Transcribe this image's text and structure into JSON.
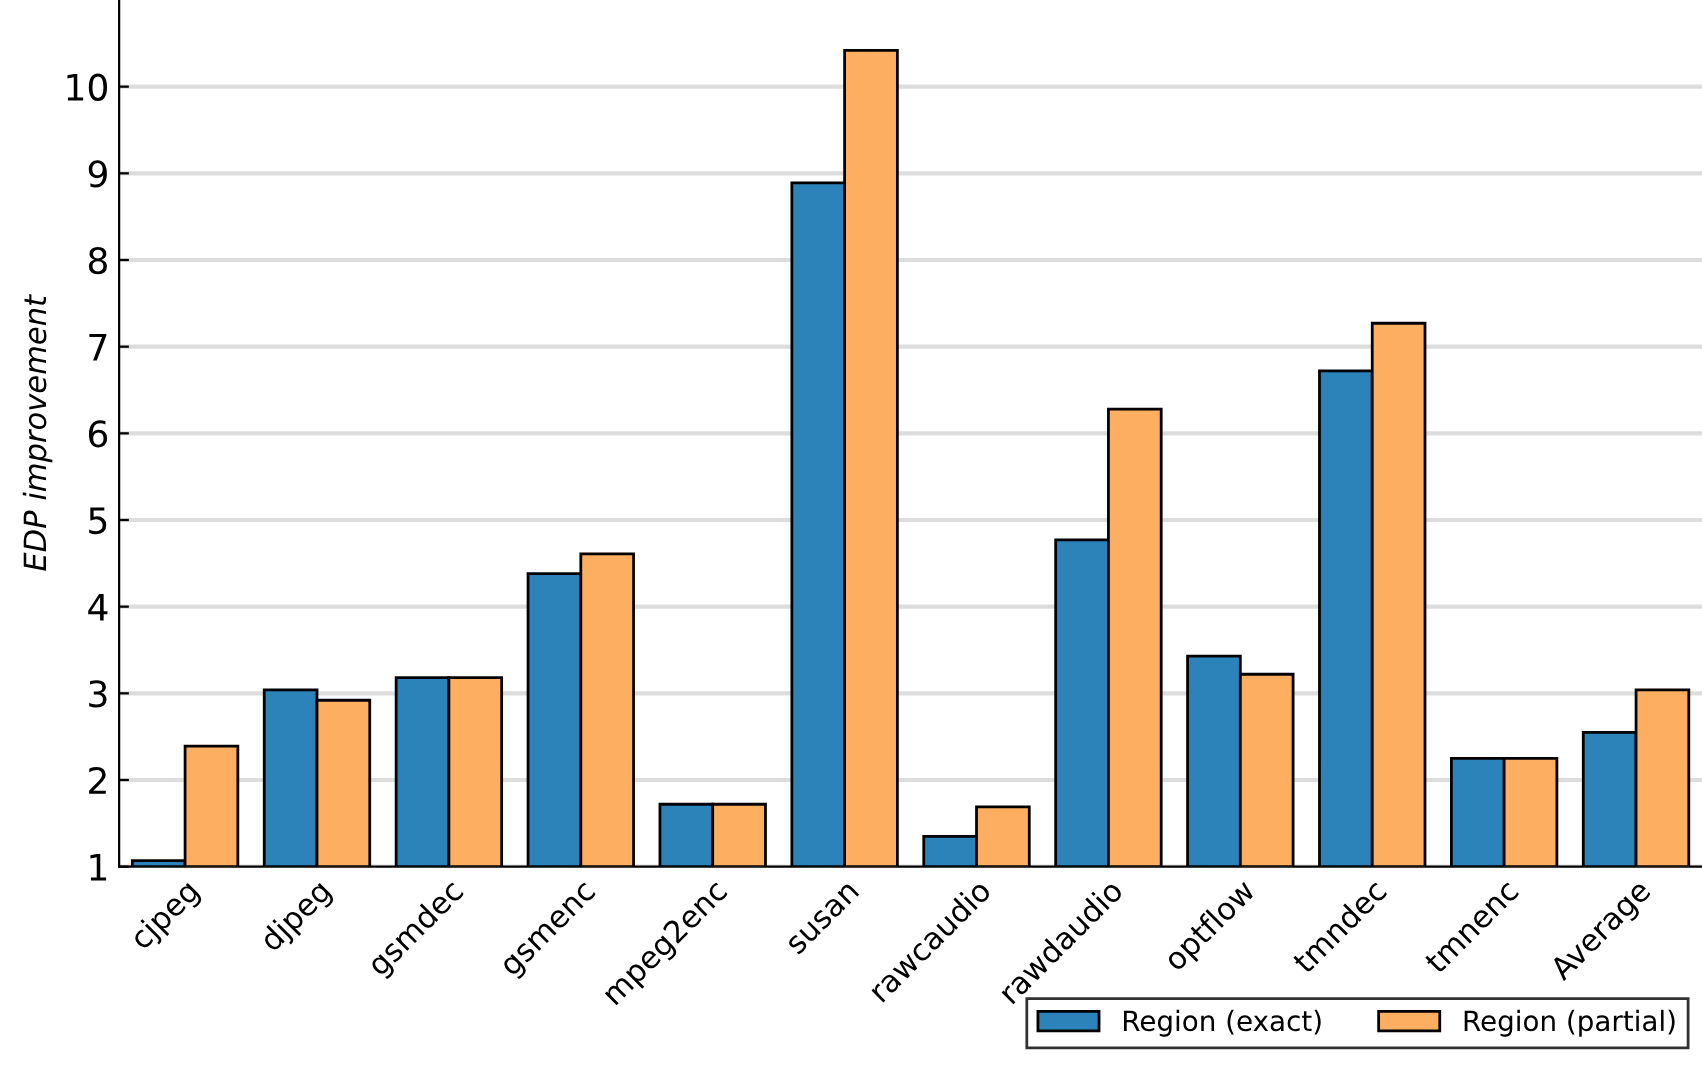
{
  "chart_data": {
    "type": "bar",
    "ylabel": "EDP improvement",
    "categories": [
      "cjpeg",
      "djpeg",
      "gsmdec",
      "gsmenc",
      "mpeg2enc",
      "susan",
      "rawcaudio",
      "rawdaudio",
      "optflow",
      "tmndec",
      "tmnenc",
      "Average"
    ],
    "series": [
      {
        "name": "Region (exact)",
        "color": "#2b83ba",
        "values": [
          1.07,
          3.04,
          3.18,
          4.38,
          1.72,
          8.89,
          1.35,
          4.77,
          3.43,
          6.72,
          2.25,
          2.55
        ]
      },
      {
        "name": "Region (partial)",
        "color": "#fdae61",
        "values": [
          2.39,
          2.92,
          3.18,
          4.61,
          1.72,
          10.42,
          1.69,
          6.28,
          3.22,
          7.27,
          2.25,
          3.04
        ]
      }
    ],
    "ylim": [
      1,
      11
    ],
    "yticks": [
      1,
      2,
      3,
      4,
      5,
      6,
      7,
      8,
      9,
      10
    ],
    "grid": "y",
    "legend": "bottom right"
  }
}
